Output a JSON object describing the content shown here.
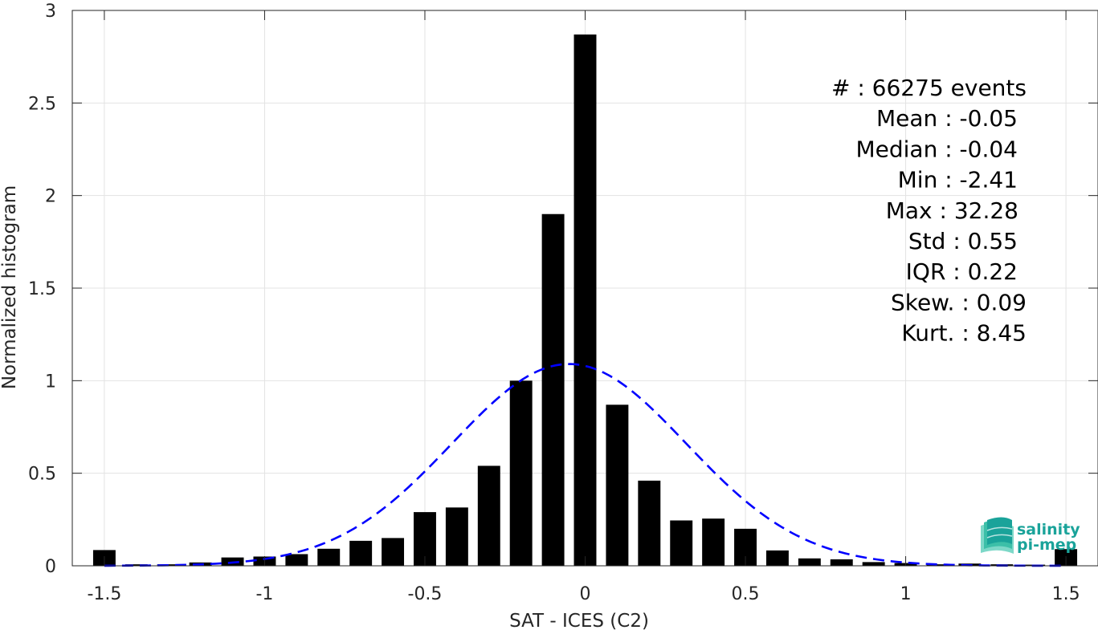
{
  "chart_data": {
    "type": "bar",
    "xlabel": "SAT - ICES (C2)",
    "ylabel": "Normalized histogram",
    "xlim": [
      -1.6,
      1.6
    ],
    "ylim": [
      0,
      3
    ],
    "grid": true,
    "xticks": [
      -1.5,
      -1,
      -0.5,
      0,
      0.5,
      1,
      1.5
    ],
    "xtick_labels": [
      "-1.5",
      "-1",
      "-0.5",
      "0",
      "0.5",
      "1",
      "1.5"
    ],
    "yticks": [
      0,
      0.5,
      1,
      1.5,
      2,
      2.5,
      3
    ],
    "ytick_labels": [
      "0",
      "0.5",
      "1",
      "1.5",
      "2",
      "2.5",
      "3"
    ],
    "bin_width": 0.1,
    "bars": {
      "x": [
        -1.5,
        -1.4,
        -1.3,
        -1.2,
        -1.1,
        -1.0,
        -0.9,
        -0.8,
        -0.7,
        -0.6,
        -0.5,
        -0.4,
        -0.3,
        -0.2,
        -0.1,
        0.0,
        0.1,
        0.2,
        0.3,
        0.4,
        0.5,
        0.6,
        0.7,
        0.8,
        0.9,
        1.0,
        1.1,
        1.2,
        1.3,
        1.4,
        1.5
      ],
      "values": [
        0.085,
        0.008,
        0.008,
        0.018,
        0.045,
        0.05,
        0.063,
        0.092,
        0.135,
        0.15,
        0.29,
        0.315,
        0.54,
        1.0,
        1.9,
        2.87,
        0.87,
        0.46,
        0.245,
        0.255,
        0.2,
        0.083,
        0.04,
        0.035,
        0.02,
        0.015,
        0.008,
        0.012,
        0.008,
        0.006,
        0.09
      ],
      "color": "#000000"
    },
    "fit": {
      "type": "normal",
      "mean": -0.05,
      "std": 0.365,
      "peak": 1.09,
      "x_range": [
        -1.5,
        1.5
      ],
      "color": "#0000ff",
      "style": "dashed"
    },
    "stats": [
      "#  : 66275 events",
      "Mean : -0.05",
      "Median : -0.04",
      "Min : -2.41",
      "Max : 32.28",
      "Std : 0.55",
      "IQR : 0.22",
      "Skew. : 0.09",
      "Kurt. : 8.45"
    ],
    "stats_placement": "top-right",
    "logo": {
      "line1": "salinity",
      "line2": "pi-mep",
      "placement": "bottom-right"
    }
  }
}
